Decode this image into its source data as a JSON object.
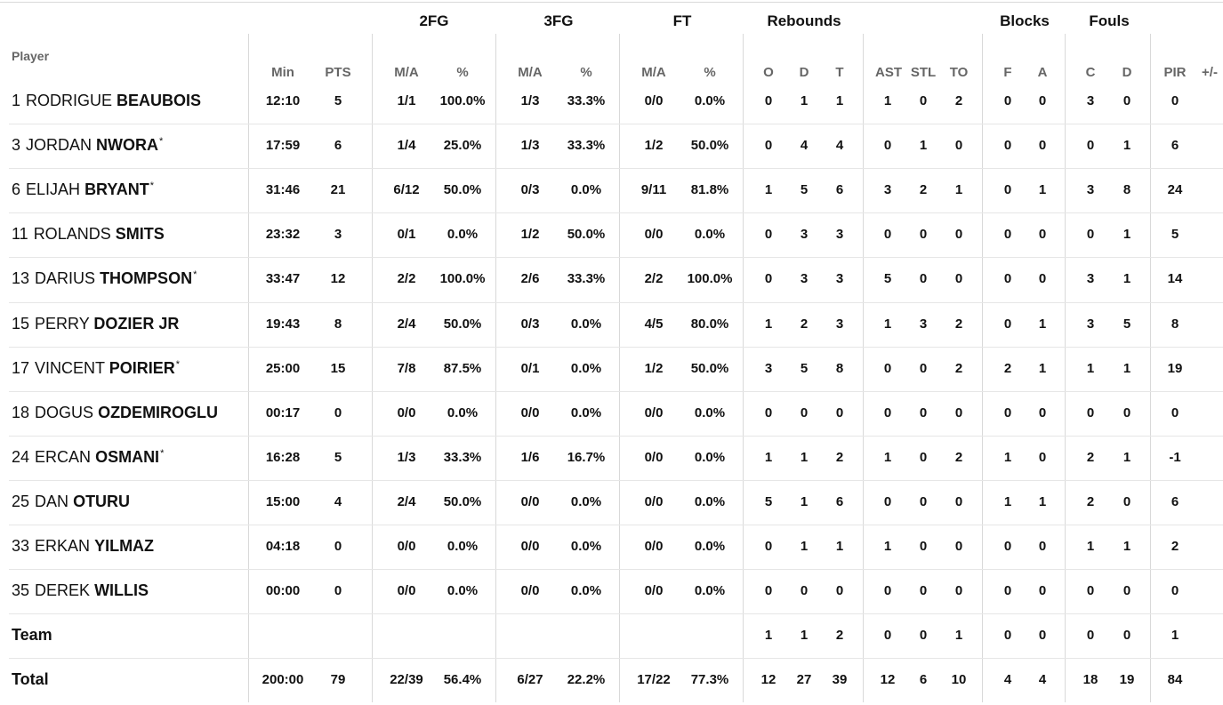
{
  "groups": {
    "fg2": "2FG",
    "fg3": "3FG",
    "ft": "FT",
    "rebounds": "Rebounds",
    "blocks": "Blocks",
    "fouls": "Fouls"
  },
  "headers": {
    "player": "Player",
    "min": "Min",
    "pts": "PTS",
    "fg2_ma": "M/A",
    "fg2_pct": "%",
    "fg3_ma": "M/A",
    "fg3_pct": "%",
    "ft_ma": "M/A",
    "ft_pct": "%",
    "reb_o": "O",
    "reb_d": "D",
    "reb_t": "T",
    "ast": "AST",
    "stl": "STL",
    "to": "TO",
    "blk_f": "F",
    "blk_a": "A",
    "foul_c": "C",
    "foul_d": "D",
    "pir": "PIR",
    "plusminus": "+/-"
  },
  "players": [
    {
      "no": "1",
      "first": "RODRIGUE",
      "last": "BEAUBOIS",
      "starter": "",
      "min": "12:10",
      "pts": "5",
      "fg2_ma": "1/1",
      "fg2_pct": "100.0%",
      "fg3_ma": "1/3",
      "fg3_pct": "33.3%",
      "ft_ma": "0/0",
      "ft_pct": "0.0%",
      "reb_o": "0",
      "reb_d": "1",
      "reb_t": "1",
      "ast": "1",
      "stl": "0",
      "to": "2",
      "blk_f": "0",
      "blk_a": "0",
      "foul_c": "3",
      "foul_d": "0",
      "pir": "0"
    },
    {
      "no": "3",
      "first": "JORDAN",
      "last": "NWORA",
      "starter": "*",
      "min": "17:59",
      "pts": "6",
      "fg2_ma": "1/4",
      "fg2_pct": "25.0%",
      "fg3_ma": "1/3",
      "fg3_pct": "33.3%",
      "ft_ma": "1/2",
      "ft_pct": "50.0%",
      "reb_o": "0",
      "reb_d": "4",
      "reb_t": "4",
      "ast": "0",
      "stl": "1",
      "to": "0",
      "blk_f": "0",
      "blk_a": "0",
      "foul_c": "0",
      "foul_d": "1",
      "pir": "6"
    },
    {
      "no": "6",
      "first": "ELIJAH",
      "last": "BRYANT",
      "starter": "*",
      "min": "31:46",
      "pts": "21",
      "fg2_ma": "6/12",
      "fg2_pct": "50.0%",
      "fg3_ma": "0/3",
      "fg3_pct": "0.0%",
      "ft_ma": "9/11",
      "ft_pct": "81.8%",
      "reb_o": "1",
      "reb_d": "5",
      "reb_t": "6",
      "ast": "3",
      "stl": "2",
      "to": "1",
      "blk_f": "0",
      "blk_a": "1",
      "foul_c": "3",
      "foul_d": "8",
      "pir": "24"
    },
    {
      "no": "11",
      "first": "ROLANDS",
      "last": "SMITS",
      "starter": "",
      "min": "23:32",
      "pts": "3",
      "fg2_ma": "0/1",
      "fg2_pct": "0.0%",
      "fg3_ma": "1/2",
      "fg3_pct": "50.0%",
      "ft_ma": "0/0",
      "ft_pct": "0.0%",
      "reb_o": "0",
      "reb_d": "3",
      "reb_t": "3",
      "ast": "0",
      "stl": "0",
      "to": "0",
      "blk_f": "0",
      "blk_a": "0",
      "foul_c": "0",
      "foul_d": "1",
      "pir": "5"
    },
    {
      "no": "13",
      "first": "DARIUS",
      "last": "THOMPSON",
      "starter": "*",
      "min": "33:47",
      "pts": "12",
      "fg2_ma": "2/2",
      "fg2_pct": "100.0%",
      "fg3_ma": "2/6",
      "fg3_pct": "33.3%",
      "ft_ma": "2/2",
      "ft_pct": "100.0%",
      "reb_o": "0",
      "reb_d": "3",
      "reb_t": "3",
      "ast": "5",
      "stl": "0",
      "to": "0",
      "blk_f": "0",
      "blk_a": "0",
      "foul_c": "3",
      "foul_d": "1",
      "pir": "14"
    },
    {
      "no": "15",
      "first": "PERRY",
      "last": "DOZIER JR",
      "starter": "",
      "min": "19:43",
      "pts": "8",
      "fg2_ma": "2/4",
      "fg2_pct": "50.0%",
      "fg3_ma": "0/3",
      "fg3_pct": "0.0%",
      "ft_ma": "4/5",
      "ft_pct": "80.0%",
      "reb_o": "1",
      "reb_d": "2",
      "reb_t": "3",
      "ast": "1",
      "stl": "3",
      "to": "2",
      "blk_f": "0",
      "blk_a": "1",
      "foul_c": "3",
      "foul_d": "5",
      "pir": "8"
    },
    {
      "no": "17",
      "first": "VINCENT",
      "last": "POIRIER",
      "starter": "*",
      "min": "25:00",
      "pts": "15",
      "fg2_ma": "7/8",
      "fg2_pct": "87.5%",
      "fg3_ma": "0/1",
      "fg3_pct": "0.0%",
      "ft_ma": "1/2",
      "ft_pct": "50.0%",
      "reb_o": "3",
      "reb_d": "5",
      "reb_t": "8",
      "ast": "0",
      "stl": "0",
      "to": "2",
      "blk_f": "2",
      "blk_a": "1",
      "foul_c": "1",
      "foul_d": "1",
      "pir": "19"
    },
    {
      "no": "18",
      "first": "DOGUS",
      "last": "OZDEMIROGLU",
      "starter": "",
      "min": "00:17",
      "pts": "0",
      "fg2_ma": "0/0",
      "fg2_pct": "0.0%",
      "fg3_ma": "0/0",
      "fg3_pct": "0.0%",
      "ft_ma": "0/0",
      "ft_pct": "0.0%",
      "reb_o": "0",
      "reb_d": "0",
      "reb_t": "0",
      "ast": "0",
      "stl": "0",
      "to": "0",
      "blk_f": "0",
      "blk_a": "0",
      "foul_c": "0",
      "foul_d": "0",
      "pir": "0"
    },
    {
      "no": "24",
      "first": "ERCAN",
      "last": "OSMANI",
      "starter": "*",
      "min": "16:28",
      "pts": "5",
      "fg2_ma": "1/3",
      "fg2_pct": "33.3%",
      "fg3_ma": "1/6",
      "fg3_pct": "16.7%",
      "ft_ma": "0/0",
      "ft_pct": "0.0%",
      "reb_o": "1",
      "reb_d": "1",
      "reb_t": "2",
      "ast": "1",
      "stl": "0",
      "to": "2",
      "blk_f": "1",
      "blk_a": "0",
      "foul_c": "2",
      "foul_d": "1",
      "pir": "-1"
    },
    {
      "no": "25",
      "first": "DAN",
      "last": "OTURU",
      "starter": "",
      "min": "15:00",
      "pts": "4",
      "fg2_ma": "2/4",
      "fg2_pct": "50.0%",
      "fg3_ma": "0/0",
      "fg3_pct": "0.0%",
      "ft_ma": "0/0",
      "ft_pct": "0.0%",
      "reb_o": "5",
      "reb_d": "1",
      "reb_t": "6",
      "ast": "0",
      "stl": "0",
      "to": "0",
      "blk_f": "1",
      "blk_a": "1",
      "foul_c": "2",
      "foul_d": "0",
      "pir": "6"
    },
    {
      "no": "33",
      "first": "ERKAN",
      "last": "YILMAZ",
      "starter": "",
      "min": "04:18",
      "pts": "0",
      "fg2_ma": "0/0",
      "fg2_pct": "0.0%",
      "fg3_ma": "0/0",
      "fg3_pct": "0.0%",
      "ft_ma": "0/0",
      "ft_pct": "0.0%",
      "reb_o": "0",
      "reb_d": "1",
      "reb_t": "1",
      "ast": "1",
      "stl": "0",
      "to": "0",
      "blk_f": "0",
      "blk_a": "0",
      "foul_c": "1",
      "foul_d": "1",
      "pir": "2"
    },
    {
      "no": "35",
      "first": "DEREK",
      "last": "WILLIS",
      "starter": "",
      "min": "00:00",
      "pts": "0",
      "fg2_ma": "0/0",
      "fg2_pct": "0.0%",
      "fg3_ma": "0/0",
      "fg3_pct": "0.0%",
      "ft_ma": "0/0",
      "ft_pct": "0.0%",
      "reb_o": "0",
      "reb_d": "0",
      "reb_t": "0",
      "ast": "0",
      "stl": "0",
      "to": "0",
      "blk_f": "0",
      "blk_a": "0",
      "foul_c": "0",
      "foul_d": "0",
      "pir": "0"
    }
  ],
  "team": {
    "label": "Team",
    "reb_o": "1",
    "reb_d": "1",
    "reb_t": "2",
    "ast": "0",
    "stl": "0",
    "to": "1",
    "blk_f": "0",
    "blk_a": "0",
    "foul_c": "0",
    "foul_d": "0",
    "pir": "1"
  },
  "total": {
    "label": "Total",
    "min": "200:00",
    "pts": "79",
    "fg2_ma": "22/39",
    "fg2_pct": "56.4%",
    "fg3_ma": "6/27",
    "fg3_pct": "22.2%",
    "ft_ma": "17/22",
    "ft_pct": "77.3%",
    "reb_o": "12",
    "reb_d": "27",
    "reb_t": "39",
    "ast": "12",
    "stl": "6",
    "to": "10",
    "blk_f": "4",
    "blk_a": "4",
    "foul_c": "18",
    "foul_d": "19",
    "pir": "84"
  }
}
